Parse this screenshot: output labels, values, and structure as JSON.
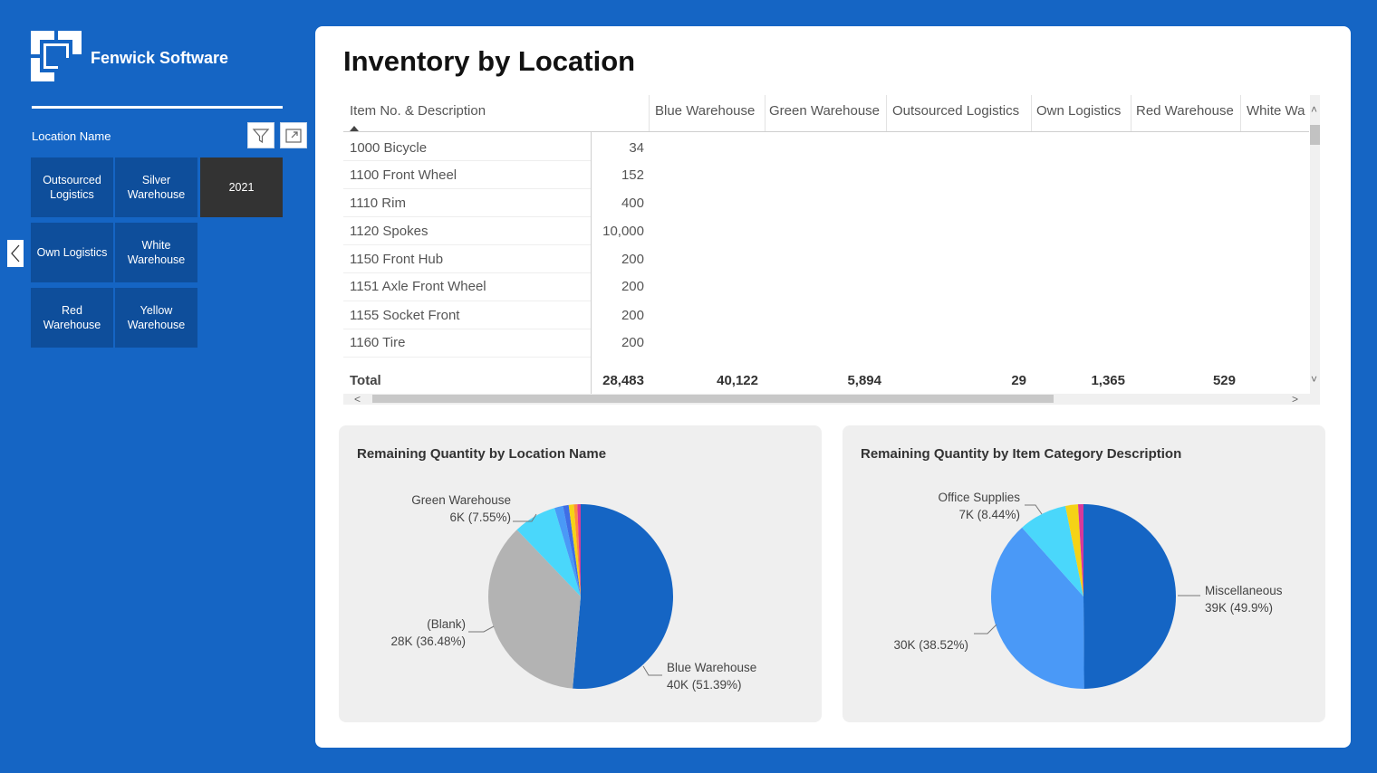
{
  "brand": {
    "name": "Fenwick Software",
    "logo_icon": "fenwick-logo-icon"
  },
  "slicer": {
    "label": "Location Name",
    "filter_icon": "funnel-icon",
    "focus_icon": "focus-mode-icon",
    "collapse_icon": "chevron-left-icon",
    "tiles": [
      {
        "label": "Outsourced Logistics",
        "selected": false
      },
      {
        "label": "Silver Warehouse",
        "selected": false
      },
      {
        "label": "2021",
        "selected": true
      },
      {
        "label": "Own Logistics",
        "selected": false
      },
      {
        "label": "White Warehouse",
        "selected": false
      },
      {
        "label": "Red Warehouse",
        "selected": false
      },
      {
        "label": "Yellow Warehouse",
        "selected": false
      }
    ]
  },
  "page": {
    "title": "Inventory by Location"
  },
  "matrix": {
    "row_header": "Item No. & Description",
    "sort_icon": "sort-ascending-icon",
    "columns": [
      "Blue Warehouse",
      "Green Warehouse",
      "Outsourced Logistics",
      "Own Logistics",
      "Red Warehouse",
      "White Wa"
    ],
    "rows": [
      {
        "label": "1000 Bicycle",
        "value": "34"
      },
      {
        "label": "1100 Front Wheel",
        "value": "152"
      },
      {
        "label": "1110 Rim",
        "value": "400"
      },
      {
        "label": "1120 Spokes",
        "value": "10,000"
      },
      {
        "label": "1150 Front Hub",
        "value": "200"
      },
      {
        "label": "1151 Axle Front Wheel",
        "value": "200"
      },
      {
        "label": "1155 Socket Front",
        "value": "200"
      },
      {
        "label": "1160 Tire",
        "value": "200"
      }
    ],
    "total_label": "Total",
    "totals": [
      "28,483",
      "40,122",
      "5,894",
      "29",
      "1,365",
      "529"
    ],
    "scroll": {
      "up": "˄",
      "down": "˅",
      "left": "<",
      "right": ">"
    }
  },
  "chart_data": [
    {
      "type": "pie",
      "title": "Remaining Quantity by Location Name",
      "slices": [
        {
          "name": "Blue Warehouse",
          "value": 51.39,
          "label": "Blue Warehouse",
          "sublabel": "40K (51.39%)",
          "color": "#1565c4"
        },
        {
          "name": "(Blank)",
          "value": 36.48,
          "label": "(Blank)",
          "sublabel": "28K (36.48%)",
          "color": "#b3b3b3"
        },
        {
          "name": "Green Warehouse",
          "value": 7.55,
          "label": "Green Warehouse",
          "sublabel": "6K (7.55%)",
          "color": "#4ad7fb"
        },
        {
          "name": "",
          "value": 1.5,
          "color": "#4a99f7"
        },
        {
          "name": "",
          "value": 1.0,
          "color": "#3f6ee6"
        },
        {
          "name": "",
          "value": 0.9,
          "color": "#f5d316"
        },
        {
          "name": "",
          "value": 0.6,
          "color": "#ff8a3c"
        },
        {
          "name": "",
          "value": 0.58,
          "color": "#d7399a"
        }
      ]
    },
    {
      "type": "pie",
      "title": "Remaining Quantity by Item Category Description",
      "slices": [
        {
          "name": "Miscellaneous",
          "value": 49.9,
          "label": "Miscellaneous",
          "sublabel": "39K (49.9%)",
          "color": "#1565c4"
        },
        {
          "name": "",
          "value": 38.52,
          "label": "",
          "sublabel": "30K (38.52%)",
          "color": "#4a99f7"
        },
        {
          "name": "Office Supplies",
          "value": 8.44,
          "label": "Office Supplies",
          "sublabel": "7K (8.44%)",
          "color": "#4ad7fb"
        },
        {
          "name": "",
          "value": 2.2,
          "color": "#f5d316"
        },
        {
          "name": "",
          "value": 0.94,
          "color": "#d7399a"
        }
      ]
    }
  ]
}
